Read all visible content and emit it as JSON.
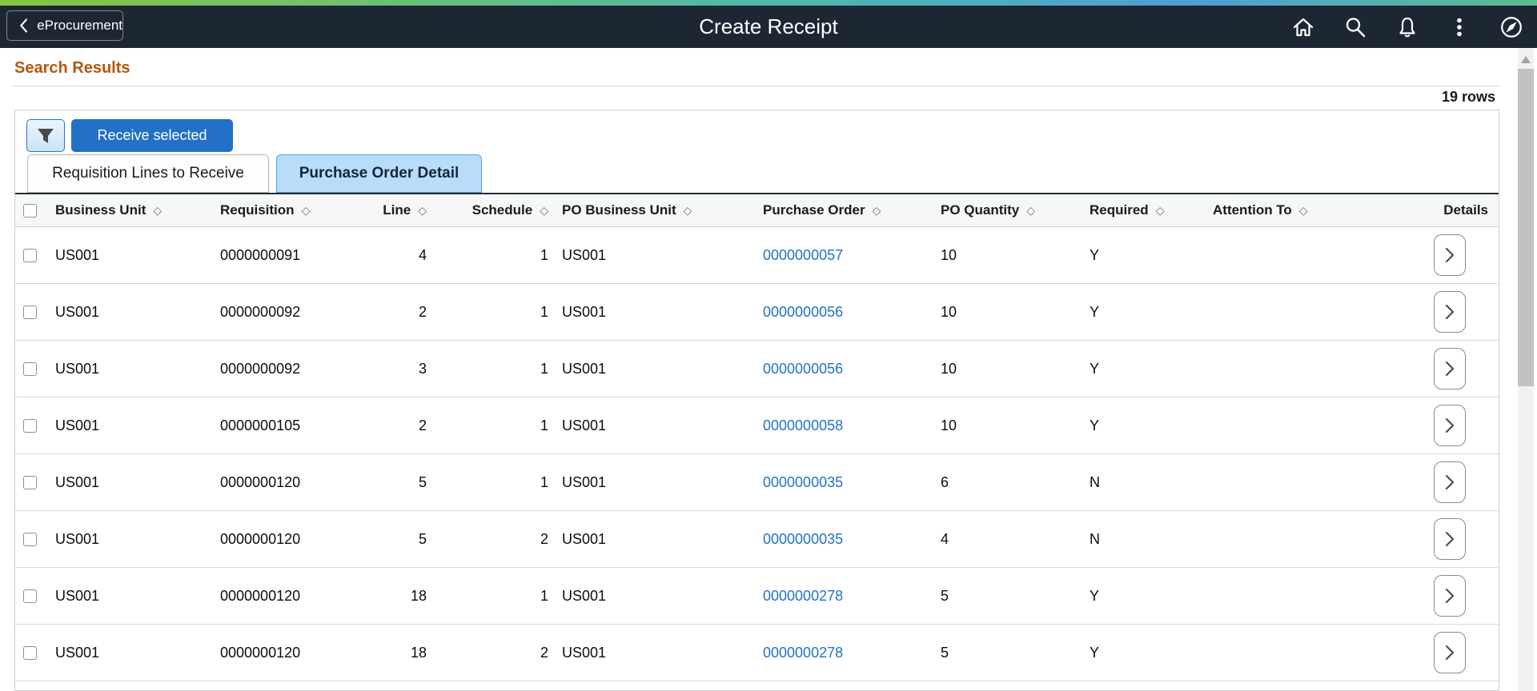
{
  "header": {
    "back_label": "eProcurement",
    "title": "Create Receipt",
    "icons": [
      "home",
      "search",
      "notifications",
      "more-options",
      "navbar-compass"
    ]
  },
  "page": {
    "section_title": "Search Results",
    "row_count": "19 rows"
  },
  "toolbar": {
    "filter_icon": "funnel-icon",
    "receive_button_label": "Receive selected"
  },
  "tabs": [
    {
      "label": "Requisition Lines to Receive",
      "active": false
    },
    {
      "label": "Purchase Order Detail",
      "active": true
    }
  ],
  "table": {
    "columns": [
      {
        "key": "business_unit",
        "label": "Business Unit",
        "sortable": true
      },
      {
        "key": "requisition",
        "label": "Requisition",
        "sortable": true
      },
      {
        "key": "line",
        "label": "Line",
        "sortable": true
      },
      {
        "key": "schedule",
        "label": "Schedule",
        "sortable": true
      },
      {
        "key": "po_business_unit",
        "label": "PO Business Unit",
        "sortable": true
      },
      {
        "key": "purchase_order",
        "label": "Purchase Order",
        "sortable": true
      },
      {
        "key": "po_quantity",
        "label": "PO Quantity",
        "sortable": true
      },
      {
        "key": "required",
        "label": "Required",
        "sortable": true
      },
      {
        "key": "attention_to",
        "label": "Attention To",
        "sortable": true
      },
      {
        "key": "details",
        "label": "Details",
        "sortable": false
      }
    ],
    "rows": [
      {
        "business_unit": "US001",
        "requisition": "0000000091",
        "line": "4",
        "schedule": "1",
        "po_business_unit": "US001",
        "purchase_order": "0000000057",
        "po_quantity": "10",
        "required": "Y",
        "attention_to": ""
      },
      {
        "business_unit": "US001",
        "requisition": "0000000092",
        "line": "2",
        "schedule": "1",
        "po_business_unit": "US001",
        "purchase_order": "0000000056",
        "po_quantity": "10",
        "required": "Y",
        "attention_to": ""
      },
      {
        "business_unit": "US001",
        "requisition": "0000000092",
        "line": "3",
        "schedule": "1",
        "po_business_unit": "US001",
        "purchase_order": "0000000056",
        "po_quantity": "10",
        "required": "Y",
        "attention_to": ""
      },
      {
        "business_unit": "US001",
        "requisition": "0000000105",
        "line": "2",
        "schedule": "1",
        "po_business_unit": "US001",
        "purchase_order": "0000000058",
        "po_quantity": "10",
        "required": "Y",
        "attention_to": ""
      },
      {
        "business_unit": "US001",
        "requisition": "0000000120",
        "line": "5",
        "schedule": "1",
        "po_business_unit": "US001",
        "purchase_order": "0000000035",
        "po_quantity": "6",
        "required": "N",
        "attention_to": ""
      },
      {
        "business_unit": "US001",
        "requisition": "0000000120",
        "line": "5",
        "schedule": "2",
        "po_business_unit": "US001",
        "purchase_order": "0000000035",
        "po_quantity": "4",
        "required": "N",
        "attention_to": ""
      },
      {
        "business_unit": "US001",
        "requisition": "0000000120",
        "line": "18",
        "schedule": "1",
        "po_business_unit": "US001",
        "purchase_order": "0000000278",
        "po_quantity": "5",
        "required": "Y",
        "attention_to": ""
      },
      {
        "business_unit": "US001",
        "requisition": "0000000120",
        "line": "18",
        "schedule": "2",
        "po_business_unit": "US001",
        "purchase_order": "0000000278",
        "po_quantity": "5",
        "required": "Y",
        "attention_to": ""
      }
    ]
  },
  "colors": {
    "top_bar": "#1d2733",
    "accent_blue": "#2271c7",
    "active_tab_bg": "#b9dcf8",
    "link_blue": "#2372c8",
    "section_title": "#b3570f",
    "stripe_green": "#86c440",
    "stripe_teal": "#52b7ac",
    "stripe_blue": "#4e9fd4"
  }
}
